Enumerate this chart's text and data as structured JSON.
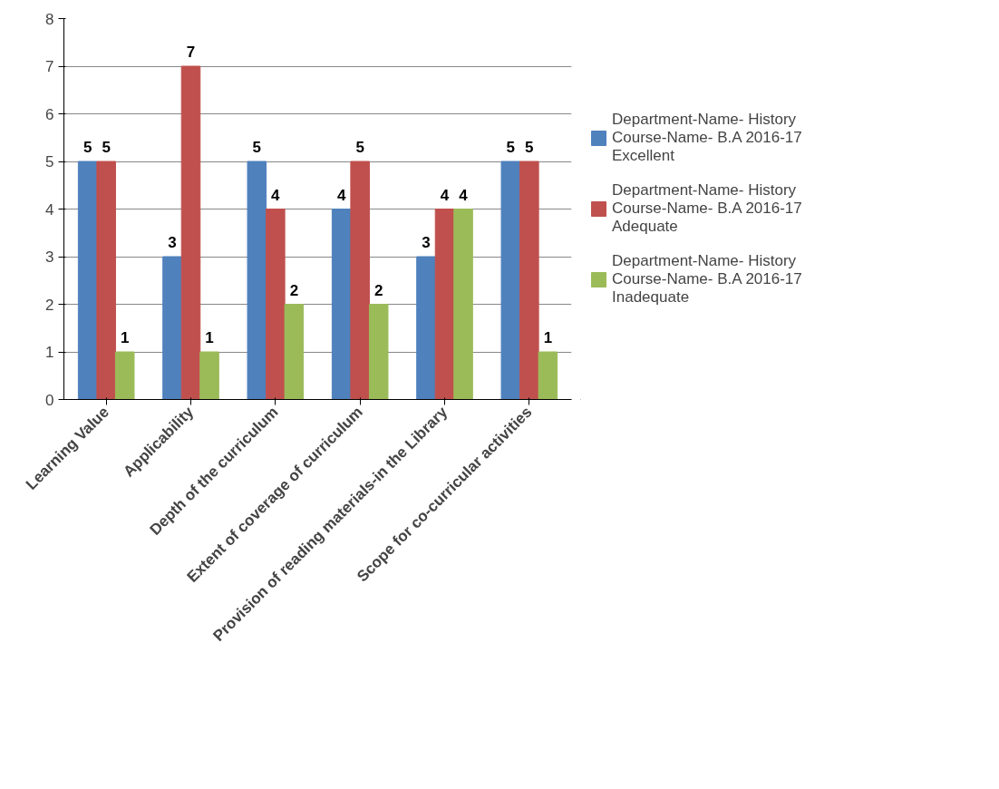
{
  "chart_data": {
    "type": "bar",
    "categories": [
      "Learning Value",
      "Applicability",
      "Depth of the curriculum",
      "Extent of coverage of curriculum",
      "Provision of reading materials-in the Library",
      "Scope for co-curricular activities"
    ],
    "series": [
      {
        "name": "Department-Name- History Course-Name- B.A 2016-17 Excellent",
        "color": "#4f81bd",
        "values": [
          5,
          3,
          5,
          4,
          3,
          5
        ]
      },
      {
        "name": "Department-Name- History Course-Name- B.A 2016-17 Adequate",
        "color": "#c0504d",
        "values": [
          5,
          7,
          4,
          5,
          4,
          5
        ]
      },
      {
        "name": "Department-Name- History Course-Name- B.A 2016-17 Inadequate",
        "color": "#9bbb59",
        "values": [
          1,
          1,
          2,
          2,
          4,
          1
        ]
      }
    ],
    "ylim": [
      0,
      8
    ],
    "yticks": [
      0,
      1,
      2,
      3,
      4,
      5,
      6,
      7,
      8
    ],
    "grid": "y",
    "legend": "right",
    "data_labels": true
  }
}
